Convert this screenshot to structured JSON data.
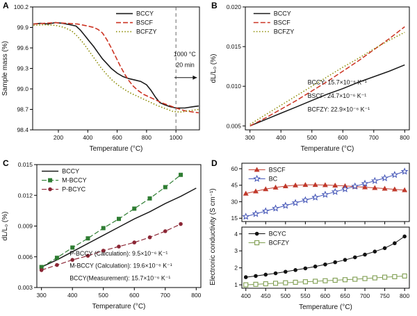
{
  "figure": {
    "background": "#ffffff"
  },
  "chart_data": [
    {
      "id": "A",
      "panel_label": "A",
      "type": "line",
      "xlabel": "Temperature (°C)",
      "ylabel": "Sample mass (%)",
      "xlim": [
        25,
        1160
      ],
      "ylim": [
        98.4,
        100.2
      ],
      "xticks": [
        200,
        400,
        600,
        800,
        1000
      ],
      "yticks": [
        98.4,
        98.7,
        99.0,
        99.3,
        99.6,
        99.9,
        100.2
      ],
      "ydecimals": 1,
      "legend": {
        "fx": 0.5,
        "fy": 0.02
      },
      "vlines": [
        {
          "x": 1000,
          "color": "#666666"
        }
      ],
      "annotations": [
        {
          "text": "1000 °C",
          "fx": 0.845,
          "fy": 0.4
        },
        {
          "text": "20 min",
          "fx": 0.86,
          "fy": 0.49
        }
      ],
      "arrows": [
        {
          "fx1": 0.85,
          "fy1": 0.575,
          "fx2": 0.985,
          "fy2": 0.575
        }
      ],
      "series": [
        {
          "name": "BCCY",
          "color": "#1a1a1a",
          "dash": "solid",
          "marker": "none",
          "width": 1.6,
          "x": [
            30,
            80,
            130,
            180,
            230,
            280,
            320,
            350,
            380,
            410,
            440,
            470,
            500,
            530,
            560,
            600,
            640,
            680,
            720,
            760,
            800,
            830,
            860,
            890,
            920,
            960,
            1000,
            1060,
            1120,
            1155
          ],
          "y": [
            99.95,
            99.96,
            99.95,
            99.97,
            99.96,
            99.94,
            99.92,
            99.86,
            99.78,
            99.7,
            99.62,
            99.53,
            99.44,
            99.37,
            99.3,
            99.23,
            99.18,
            99.15,
            99.13,
            99.11,
            99.06,
            98.98,
            98.88,
            98.8,
            98.77,
            98.74,
            98.72,
            98.72,
            98.74,
            98.75
          ]
        },
        {
          "name": "BSCF",
          "color": "#cc3322",
          "dash": "dash",
          "marker": "none",
          "width": 1.6,
          "x": [
            30,
            100,
            180,
            260,
            330,
            400,
            440,
            470,
            500,
            530,
            560,
            590,
            620,
            650,
            680,
            710,
            740,
            780,
            820,
            860,
            900,
            950,
            1000,
            1060,
            1120,
            1155
          ],
          "y": [
            99.95,
            99.96,
            99.97,
            99.96,
            99.95,
            99.92,
            99.9,
            99.87,
            99.82,
            99.72,
            99.6,
            99.47,
            99.34,
            99.22,
            99.12,
            99.04,
            98.98,
            98.92,
            98.88,
            98.84,
            98.8,
            98.76,
            98.72,
            98.68,
            98.66,
            98.65
          ]
        },
        {
          "name": "BCFZY",
          "color": "#8a8a00",
          "dash": "dot",
          "marker": "none",
          "width": 1.6,
          "x": [
            30,
            100,
            180,
            240,
            290,
            330,
            370,
            410,
            450,
            490,
            530,
            570,
            610,
            650,
            690,
            730,
            780,
            830,
            880,
            930,
            980,
            1030,
            1090,
            1155
          ],
          "y": [
            99.93,
            99.94,
            99.93,
            99.9,
            99.85,
            99.77,
            99.67,
            99.55,
            99.43,
            99.31,
            99.21,
            99.12,
            99.05,
            98.99,
            98.94,
            98.9,
            98.85,
            98.8,
            98.75,
            98.71,
            98.67,
            98.66,
            98.68,
            98.7
          ]
        }
      ]
    },
    {
      "id": "B",
      "panel_label": "B",
      "type": "line",
      "xlabel": "Temperature (°C)",
      "ylabel": "dL/L₀ (%)",
      "xlim": [
        285,
        815
      ],
      "ylim": [
        0.0045,
        0.02
      ],
      "xticks": [
        300,
        400,
        500,
        600,
        700,
        800
      ],
      "yticks": [
        0.005,
        0.01,
        0.015,
        0.02
      ],
      "ydecimals": 3,
      "legend": {
        "fx": 0.05,
        "fy": 0.02
      },
      "annotations": [
        {
          "text": "BCCY:  15.7×10⁻⁶ K⁻¹",
          "fx": 0.38,
          "fy": 0.63
        },
        {
          "text": "BSCF:  24.7×10⁻⁶ K⁻¹",
          "fx": 0.38,
          "fy": 0.74
        },
        {
          "text": "BCFZY: 22.9×10⁻⁶ K⁻¹",
          "fx": 0.38,
          "fy": 0.85
        }
      ],
      "series": [
        {
          "name": "BCCY",
          "color": "#1a1a1a",
          "dash": "solid",
          "marker": "none",
          "width": 1.5,
          "x": [
            300,
            350,
            400,
            450,
            500,
            550,
            600,
            650,
            700,
            750,
            800
          ],
          "y": [
            0.005,
            0.0058,
            0.0066,
            0.0074,
            0.0082,
            0.009,
            0.0097,
            0.0105,
            0.0112,
            0.0119,
            0.0127
          ]
        },
        {
          "name": "BSCF",
          "color": "#cc3322",
          "dash": "dash",
          "marker": "none",
          "width": 1.5,
          "x": [
            300,
            350,
            400,
            450,
            500,
            550,
            600,
            650,
            700,
            750,
            800
          ],
          "y": [
            0.005,
            0.006,
            0.0071,
            0.0082,
            0.0094,
            0.0106,
            0.0119,
            0.0132,
            0.0146,
            0.016,
            0.0175
          ]
        },
        {
          "name": "BCFZY",
          "color": "#8a8a00",
          "dash": "dot",
          "marker": "none",
          "width": 1.5,
          "x": [
            300,
            350,
            400,
            450,
            500,
            550,
            600,
            650,
            700,
            750,
            800
          ],
          "y": [
            0.0052,
            0.0064,
            0.0076,
            0.0088,
            0.01,
            0.0112,
            0.0124,
            0.0135,
            0.0147,
            0.0158,
            0.0168
          ]
        }
      ]
    },
    {
      "id": "C",
      "panel_label": "C",
      "type": "line",
      "xlabel": "Temperature (°C)",
      "ylabel": "dL/L₀ (%)",
      "xlim": [
        285,
        815
      ],
      "ylim": [
        0.003,
        0.015
      ],
      "xticks": [
        300,
        400,
        500,
        600,
        700,
        800
      ],
      "yticks": [
        0.003,
        0.006,
        0.009,
        0.012,
        0.015
      ],
      "ydecimals": 3,
      "legend": {
        "fx": 0.03,
        "fy": 0.02
      },
      "annotations": [
        {
          "text": "P-BCCY (Calculation): 9.5×10⁻⁶ K⁻¹",
          "fx": 0.2,
          "fy": 0.74
        },
        {
          "text": "M-BCCY (Calculation): 19.6×10⁻⁶ K⁻¹",
          "fx": 0.2,
          "fy": 0.84
        },
        {
          "text": "BCCY(Measurement): 15.7×10⁻⁶ K⁻¹",
          "fx": 0.2,
          "fy": 0.94
        }
      ],
      "series": [
        {
          "name": "BCCY",
          "color": "#1a1a1a",
          "dash": "solid",
          "marker": "none",
          "width": 1.5,
          "x": [
            300,
            350,
            400,
            450,
            500,
            550,
            600,
            650,
            700,
            750,
            800
          ],
          "y": [
            0.005,
            0.0057,
            0.0065,
            0.0073,
            0.0081,
            0.0089,
            0.0097,
            0.0104,
            0.0112,
            0.0119,
            0.0127
          ]
        },
        {
          "name": "M-BCCY",
          "color": "#2e7d32",
          "dash": "dash",
          "marker": "square",
          "width": 1.2,
          "x": [
            300,
            350,
            400,
            450,
            500,
            550,
            600,
            650,
            700,
            750
          ],
          "y": [
            0.005,
            0.0059,
            0.0069,
            0.0078,
            0.0088,
            0.0097,
            0.0107,
            0.0117,
            0.0128,
            0.014
          ]
        },
        {
          "name": "P-BCYC",
          "color": "#8b2635",
          "dash": "dash",
          "marker": "circle",
          "width": 1.2,
          "x": [
            300,
            350,
            400,
            450,
            500,
            550,
            600,
            650,
            700,
            750
          ],
          "y": [
            0.0047,
            0.0052,
            0.0057,
            0.0061,
            0.0066,
            0.007,
            0.0074,
            0.0079,
            0.0085,
            0.0092
          ]
        }
      ]
    },
    {
      "id": "D1",
      "panel_label": "D",
      "type": "line",
      "ylabel": "Electronic conductivity (S cm⁻¹)",
      "draw_ylabel": false,
      "xlim": [
        390,
        812
      ],
      "ylim": [
        12,
        65
      ],
      "xticks": [
        400,
        450,
        500,
        550,
        600,
        650,
        700,
        750,
        800
      ],
      "yticks": [
        15,
        30,
        45,
        60
      ],
      "ydecimals": 0,
      "legend": {
        "fx": 0.04,
        "fy": 0.04
      },
      "series": [
        {
          "name": "BSCF",
          "color": "#c0392b",
          "dash": "solid",
          "marker": "triangle",
          "width": 1,
          "x": [
            400,
            425,
            450,
            475,
            500,
            525,
            550,
            575,
            600,
            625,
            650,
            675,
            700,
            725,
            750,
            775,
            800
          ],
          "y": [
            37.5,
            39.5,
            41.5,
            43.0,
            44.2,
            45.0,
            45.4,
            45.4,
            45.2,
            44.8,
            44.3,
            43.8,
            43.2,
            42.6,
            42.0,
            41.3,
            40.6
          ]
        },
        {
          "name": "BC",
          "color": "#3f51b5",
          "dash": "solid",
          "marker": "star-open",
          "width": 1,
          "x": [
            400,
            425,
            450,
            475,
            500,
            525,
            550,
            575,
            600,
            625,
            650,
            675,
            700,
            725,
            750,
            775,
            800
          ],
          "y": [
            16.5,
            19,
            21.5,
            24,
            26.5,
            29,
            31.5,
            34,
            36.5,
            39,
            41.5,
            44,
            46.5,
            49,
            51.5,
            54.5,
            57.5
          ]
        }
      ]
    },
    {
      "id": "D2",
      "panel_label": "",
      "type": "line",
      "xlabel": "Temperature (°C)",
      "draw_ylabel": false,
      "xlim": [
        390,
        812
      ],
      "ylim": [
        0.8,
        4.4
      ],
      "xticks": [
        400,
        450,
        500,
        550,
        600,
        650,
        700,
        750,
        800
      ],
      "yticks": [
        1,
        2,
        3,
        4
      ],
      "ydecimals": 0,
      "legend": {
        "fx": 0.04,
        "fy": 0.04
      },
      "series": [
        {
          "name": "BCYC",
          "color": "#111111",
          "dash": "solid",
          "marker": "circle",
          "width": 1,
          "x": [
            400,
            425,
            450,
            475,
            500,
            525,
            550,
            575,
            600,
            625,
            650,
            675,
            700,
            725,
            750,
            775,
            800
          ],
          "y": [
            1.45,
            1.52,
            1.6,
            1.68,
            1.77,
            1.87,
            1.97,
            2.08,
            2.2,
            2.33,
            2.47,
            2.62,
            2.78,
            2.96,
            3.16,
            3.45,
            3.85
          ]
        },
        {
          "name": "BCFZY",
          "color": "#7d9c4e",
          "dash": "solid",
          "marker": "square-open",
          "width": 1,
          "x": [
            400,
            425,
            450,
            475,
            500,
            525,
            550,
            575,
            600,
            625,
            650,
            675,
            700,
            725,
            750,
            775,
            800
          ],
          "y": [
            1.0,
            1.03,
            1.06,
            1.09,
            1.12,
            1.15,
            1.18,
            1.21,
            1.24,
            1.27,
            1.3,
            1.33,
            1.37,
            1.41,
            1.45,
            1.48,
            1.52
          ]
        }
      ]
    }
  ]
}
